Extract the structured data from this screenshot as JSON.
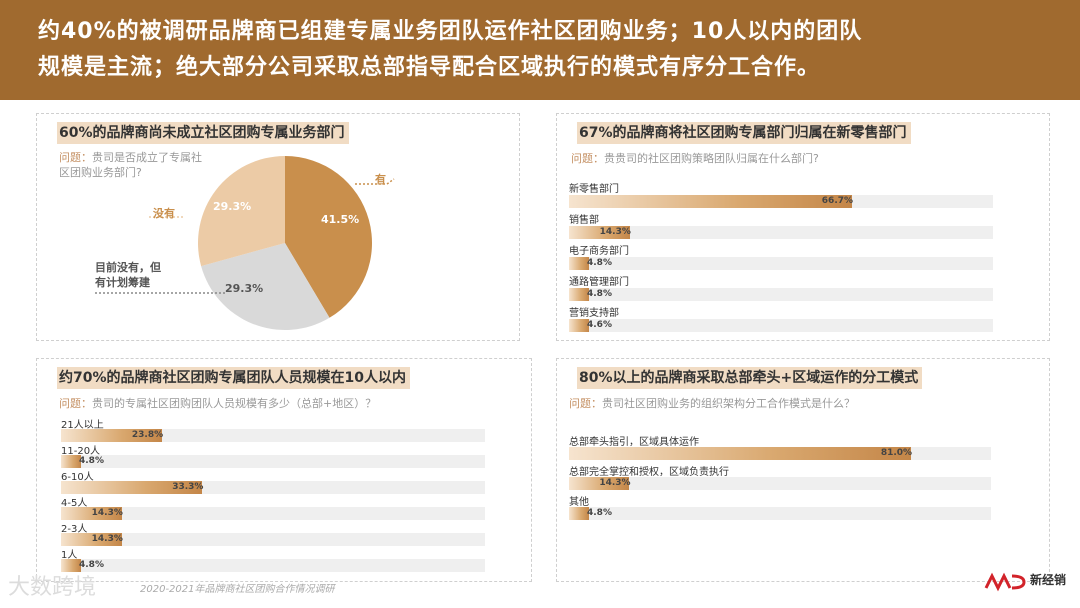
{
  "header": {
    "line1": "约40%的被调研品牌商已组建专属业务团队运作社区团购业务；10人以内的团队",
    "line2": "规模是主流；绝大部分公司采取总部指导配合区域执行的模式有序分工合作。"
  },
  "panels": {
    "p1": {
      "title": "60%的品牌商尚未成立社区团购专属业务部门",
      "question_label": "问题：",
      "question": "贵司是否成立了专属社区团购业务部门?",
      "question_line1": "贵司是否成立了专属社",
      "question_line2": "区团购业务部门?"
    },
    "p2": {
      "title": "67%的品牌商将社区团购专属部门归属在新零售部门",
      "question_label": "问题：",
      "question": "贵贵司的社区团购策略团队归属在什么部门?"
    },
    "p3": {
      "title": "约70%的品牌商社区团购专属团队人员规模在10人以内",
      "question_label": "问题：",
      "question": "贵司的专属社区团购团队人员规模有多少（总部+地区）？"
    },
    "p4": {
      "title": "80%以上的品牌商采取总部牵头+区域运作的分工模式",
      "question_label": "问题：",
      "question": "贵司社区团购业务的组织架构分工合作模式是什么？"
    }
  },
  "chart_data": [
    {
      "type": "pie",
      "categories": [
        "有",
        "目前没有，但有计划筹建",
        "没有"
      ],
      "values": [
        41.5,
        29.3,
        29.3
      ],
      "value_labels": [
        "41.5%",
        "29.3%",
        "29.3%"
      ],
      "label_lines": [
        "有",
        "目前没有，但",
        "有计划筹建",
        "没有"
      ],
      "colors": [
        "#c98f4c",
        "#d9d9d9",
        "#eccba6"
      ]
    },
    {
      "type": "bar",
      "orientation": "horizontal",
      "categories": [
        "新零售部门",
        "销售部",
        "电子商务部门",
        "通路管理部门",
        "营销支持部"
      ],
      "values": [
        66.7,
        14.3,
        4.8,
        4.8,
        4.6
      ],
      "value_labels": [
        "66.7%",
        "14.3%",
        "4.8%",
        "4.8%",
        "4.6%"
      ],
      "xlim": [
        0,
        100
      ]
    },
    {
      "type": "bar",
      "orientation": "horizontal",
      "categories": [
        "21人以上",
        "11-20人",
        "6-10人",
        "4-5人",
        "2-3人",
        "1人"
      ],
      "values": [
        23.8,
        4.8,
        33.3,
        14.3,
        14.3,
        4.8
      ],
      "value_labels": [
        "23.8%",
        "4.8%",
        "33.3%",
        "14.3%",
        "14.3%",
        "4.8%"
      ],
      "xlim": [
        0,
        100
      ]
    },
    {
      "type": "bar",
      "orientation": "horizontal",
      "categories": [
        "总部牵头指引，区域具体运作",
        "总部完全掌控和授权，区域负责执行",
        "其他"
      ],
      "values": [
        81.0,
        14.3,
        4.8
      ],
      "value_labels": [
        "81.0%",
        "14.3%",
        "4.8%"
      ],
      "xlim": [
        0,
        100
      ]
    }
  ],
  "footer": {
    "source": "2020-2021年品牌商社区团购合作情况调研",
    "watermark": "大数跨境",
    "brand": "新经销"
  },
  "colors": {
    "header_bg": "#a06a2f",
    "title_highlight": "#f1dcc4",
    "bar_dark": "#c48648",
    "track": "#efefef"
  }
}
